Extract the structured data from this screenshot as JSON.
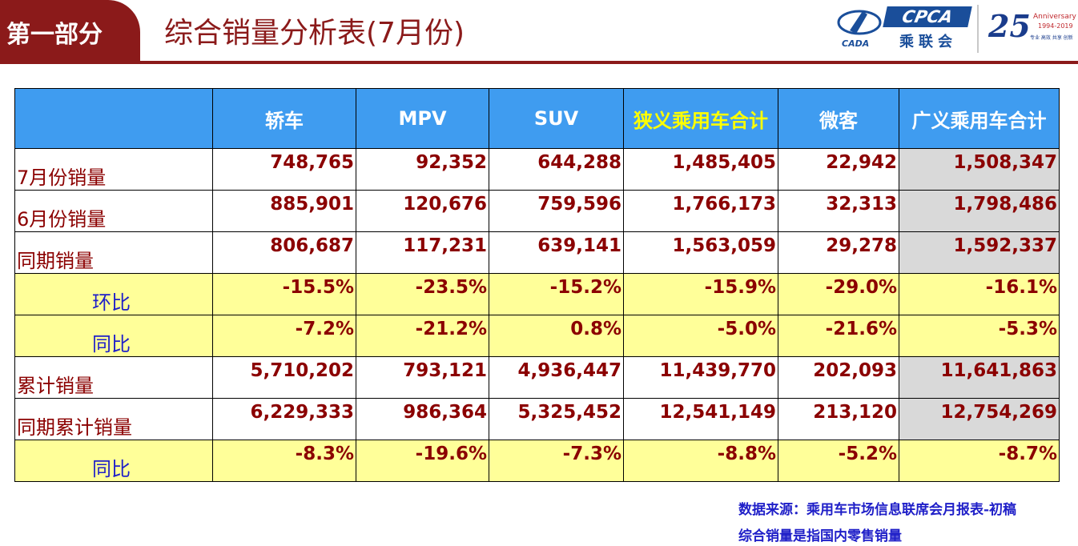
{
  "header": {
    "section_label": "第一部分",
    "title": "综合销量分析表(7月份)"
  },
  "logos": {
    "cada_text": "CADA",
    "cpca_text": "CPCA",
    "cpca_cn": "乘联会",
    "anniversary_number": "25",
    "anniversary_text": "Anniversary",
    "anniversary_years": "1994-2019",
    "anniversary_tagline": "专业 高效 共享 创新"
  },
  "table": {
    "columns": [
      "",
      "轿车",
      "MPV",
      "SUV",
      "狭义乘用车合计",
      "微客",
      "广义乘用车合计"
    ],
    "highlight_column_color": "#ffff00",
    "rows": [
      {
        "label": "7月份销量",
        "type": "volume",
        "values": [
          "748,765",
          "92,352",
          "644,288",
          "1,485,405",
          "22,942",
          "1,508,347"
        ]
      },
      {
        "label": "6月份销量",
        "type": "volume",
        "values": [
          "885,901",
          "120,676",
          "759,596",
          "1,766,173",
          "32,313",
          "1,798,486"
        ]
      },
      {
        "label": "同期销量",
        "type": "volume",
        "values": [
          "806,687",
          "117,231",
          "639,141",
          "1,563,059",
          "29,278",
          "1,592,337"
        ]
      },
      {
        "label": "环比",
        "type": "pct",
        "values": [
          "-15.5%",
          "-23.5%",
          "-15.2%",
          "-15.9%",
          "-29.0%",
          "-16.1%"
        ]
      },
      {
        "label": "同比",
        "type": "pct",
        "values": [
          "-7.2%",
          "-21.2%",
          "0.8%",
          "-5.0%",
          "-21.6%",
          "-5.3%"
        ]
      },
      {
        "label": "累计销量",
        "type": "volume",
        "values": [
          "5,710,202",
          "793,121",
          "4,936,447",
          "11,439,770",
          "202,093",
          "11,641,863"
        ]
      },
      {
        "label": "同期累计销量",
        "type": "volume",
        "values": [
          "6,229,333",
          "986,364",
          "5,325,452",
          "12,541,149",
          "213,120",
          "12,754,269"
        ]
      },
      {
        "label": "同比",
        "type": "pct",
        "values": [
          "-8.3%",
          "-19.6%",
          "-7.3%",
          "-8.8%",
          "-5.2%",
          "-8.7%"
        ]
      }
    ]
  },
  "notes": {
    "source": "数据来源：乘用车市场信息联席会月报表-初稿",
    "definition": "综合销量是指国内零售销量"
  },
  "colors": {
    "brand_red": "#8b1a1a",
    "header_blue": "#3f9cf0",
    "pct_row_yellow": "#ffff99",
    "total_gray": "#d9d9d9",
    "note_blue": "#1f1fc8"
  }
}
